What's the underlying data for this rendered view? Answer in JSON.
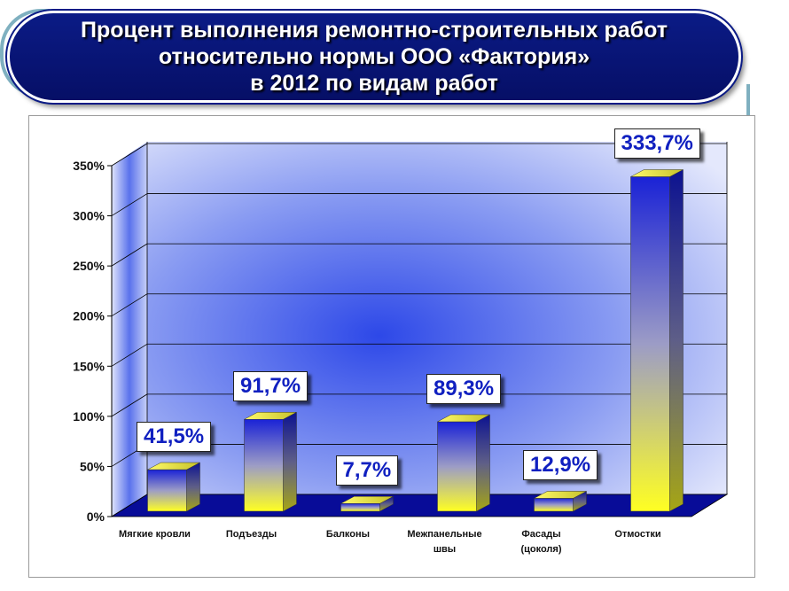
{
  "title": {
    "line1": "Процент выполнения ремонтно-строительных работ",
    "line2": "относительно нормы ООО «Фактория»",
    "line3": "в 2012 по видам работ"
  },
  "chart_data": {
    "type": "bar",
    "title": "Процент выполнения ремонтно-строительных работ относительно нормы ООО «Фактория» в 2012 по видам работ",
    "categories": [
      [
        "Мягкие кровли"
      ],
      [
        "Подъезды"
      ],
      [
        "Балконы"
      ],
      [
        "Межпанельные",
        "швы"
      ],
      [
        "Фасады",
        "(цоколя)"
      ],
      [
        "Отмостки"
      ]
    ],
    "values": [
      41.5,
      91.7,
      7.7,
      89.3,
      12.9,
      333.7
    ],
    "value_labels": [
      "41,5%",
      "91,7%",
      "7,7%",
      "89,3%",
      "12,9%",
      "333,7%"
    ],
    "yticks": [
      "0%",
      "50%",
      "100%",
      "150%",
      "200%",
      "250%",
      "300%",
      "350%"
    ],
    "ylim": [
      0,
      350
    ],
    "xlabel": "",
    "ylabel": "",
    "colors": {
      "bar_top": "#1c2ad8",
      "bar_bottom": "#ffff33",
      "floor": "#080c98",
      "wall": "#7f90f0",
      "label_text": "#1020c0",
      "banner": "#0b1b86"
    }
  }
}
